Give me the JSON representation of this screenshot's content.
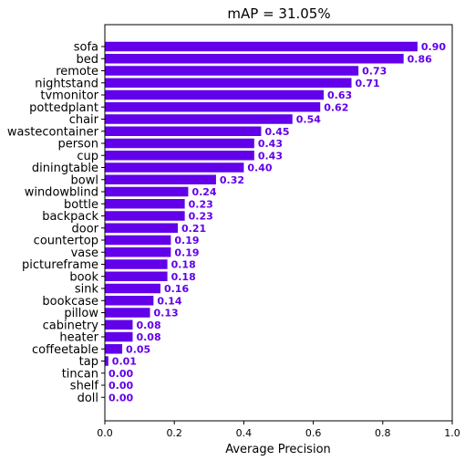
{
  "chart_data": {
    "type": "bar",
    "orientation": "horizontal",
    "title": "mAP = 31.05%",
    "xlabel": "Average Precision",
    "ylabel": "",
    "xlim": [
      0,
      1.0
    ],
    "xticks": [
      "0.0",
      "0.2",
      "0.4",
      "0.6",
      "0.8",
      "1.0"
    ],
    "bar_color": "#6200ea",
    "label_color": "#6200ea",
    "grid": false,
    "categories": [
      "sofa",
      "bed",
      "remote",
      "nightstand",
      "tvmonitor",
      "pottedplant",
      "chair",
      "wastecontainer",
      "person",
      "cup",
      "diningtable",
      "bowl",
      "windowblind",
      "bottle",
      "backpack",
      "door",
      "countertop",
      "vase",
      "pictureframe",
      "book",
      "sink",
      "bookcase",
      "pillow",
      "cabinetry",
      "heater",
      "coffeetable",
      "tap",
      "tincan",
      "shelf",
      "doll"
    ],
    "values": [
      0.9,
      0.86,
      0.73,
      0.71,
      0.63,
      0.62,
      0.54,
      0.45,
      0.43,
      0.43,
      0.4,
      0.32,
      0.24,
      0.23,
      0.23,
      0.21,
      0.19,
      0.19,
      0.18,
      0.18,
      0.16,
      0.14,
      0.13,
      0.08,
      0.08,
      0.05,
      0.01,
      0.0,
      0.0,
      0.0
    ],
    "value_labels": [
      "0.90",
      "0.86",
      "0.73",
      "0.71",
      "0.63",
      "0.62",
      "0.54",
      "0.45",
      "0.43",
      "0.43",
      "0.40",
      "0.32",
      "0.24",
      "0.23",
      "0.23",
      "0.21",
      "0.19",
      "0.19",
      "0.18",
      "0.18",
      "0.16",
      "0.14",
      "0.13",
      "0.08",
      "0.08",
      "0.05",
      "0.01",
      "0.00",
      "0.00",
      "0.00"
    ]
  }
}
